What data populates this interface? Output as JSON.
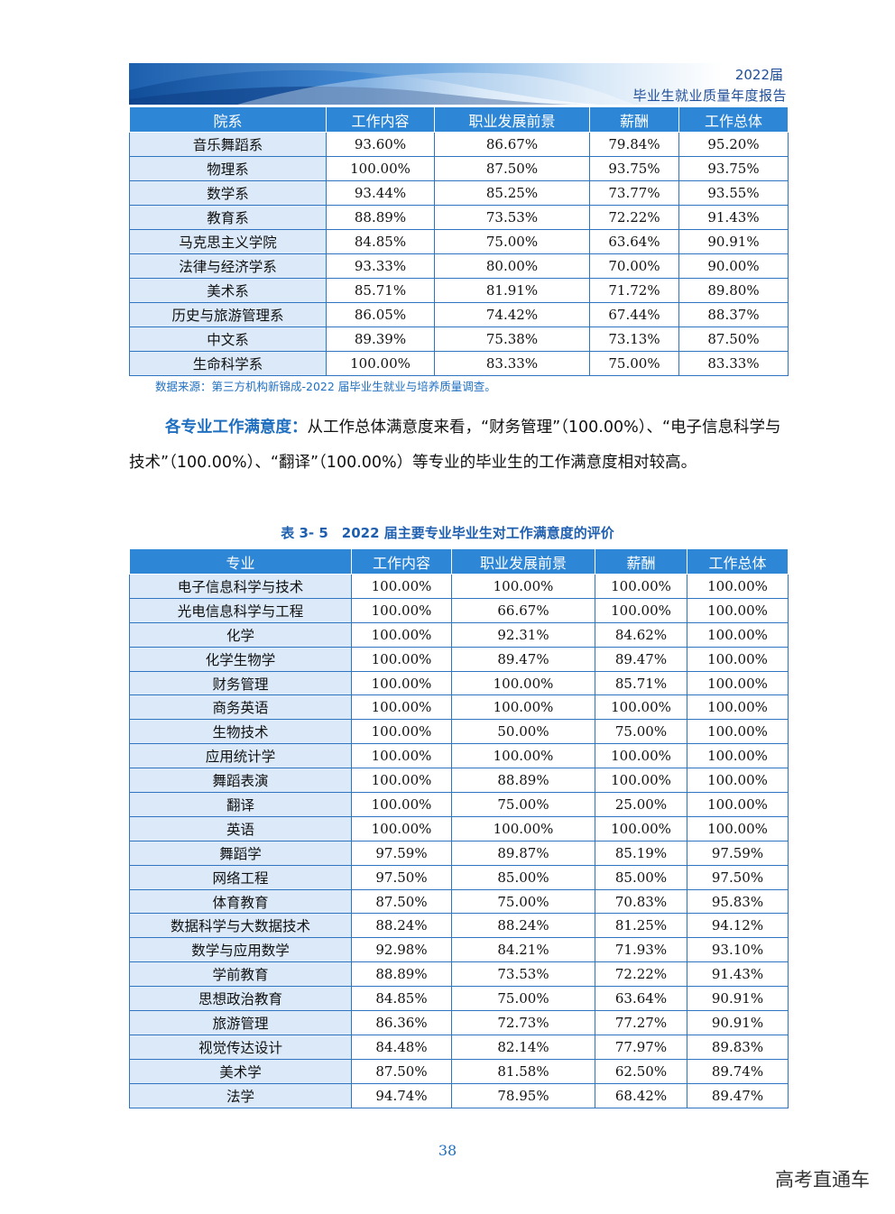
{
  "header": {
    "year": "2022届",
    "title": "毕业生就业质量年度报告"
  },
  "table1": {
    "columns": [
      "院系",
      "工作内容",
      "职业发展前景",
      "薪酬",
      "工作总体"
    ],
    "rows": [
      [
        "音乐舞蹈系",
        "93.60%",
        "86.67%",
        "79.84%",
        "95.20%"
      ],
      [
        "物理系",
        "100.00%",
        "87.50%",
        "93.75%",
        "93.75%"
      ],
      [
        "数学系",
        "93.44%",
        "85.25%",
        "73.77%",
        "93.55%"
      ],
      [
        "教育系",
        "88.89%",
        "73.53%",
        "72.22%",
        "91.43%"
      ],
      [
        "马克思主义学院",
        "84.85%",
        "75.00%",
        "63.64%",
        "90.91%"
      ],
      [
        "法律与经济学系",
        "93.33%",
        "80.00%",
        "70.00%",
        "90.00%"
      ],
      [
        "美术系",
        "85.71%",
        "81.91%",
        "71.72%",
        "89.80%"
      ],
      [
        "历史与旅游管理系",
        "86.05%",
        "74.42%",
        "67.44%",
        "88.37%"
      ],
      [
        "中文系",
        "89.39%",
        "75.38%",
        "73.13%",
        "87.50%"
      ],
      [
        "生命科学系",
        "100.00%",
        "83.33%",
        "75.00%",
        "83.33%"
      ]
    ]
  },
  "source_note": "数据来源：第三方机构新锦成-2022 届毕业生就业与培养质量调查。",
  "paragraph": {
    "highlight": "各专业工作满意度：",
    "text": "从工作总体满意度来看，“财务管理”（100.00%）、“电子信息科学与技术”（100.00%）、“翻译”（100.00%）等专业的毕业生的工作满意度相对较高。"
  },
  "caption": "表 3- 5　2022 届主要专业毕业生对工作满意度的评价",
  "table2": {
    "columns": [
      "专业",
      "工作内容",
      "职业发展前景",
      "薪酬",
      "工作总体"
    ],
    "rows": [
      [
        "电子信息科学与技术",
        "100.00%",
        "100.00%",
        "100.00%",
        "100.00%"
      ],
      [
        "光电信息科学与工程",
        "100.00%",
        "66.67%",
        "100.00%",
        "100.00%"
      ],
      [
        "化学",
        "100.00%",
        "92.31%",
        "84.62%",
        "100.00%"
      ],
      [
        "化学生物学",
        "100.00%",
        "89.47%",
        "89.47%",
        "100.00%"
      ],
      [
        "财务管理",
        "100.00%",
        "100.00%",
        "85.71%",
        "100.00%"
      ],
      [
        "商务英语",
        "100.00%",
        "100.00%",
        "100.00%",
        "100.00%"
      ],
      [
        "生物技术",
        "100.00%",
        "50.00%",
        "75.00%",
        "100.00%"
      ],
      [
        "应用统计学",
        "100.00%",
        "100.00%",
        "100.00%",
        "100.00%"
      ],
      [
        "舞蹈表演",
        "100.00%",
        "88.89%",
        "100.00%",
        "100.00%"
      ],
      [
        "翻译",
        "100.00%",
        "75.00%",
        "25.00%",
        "100.00%"
      ],
      [
        "英语",
        "100.00%",
        "100.00%",
        "100.00%",
        "100.00%"
      ],
      [
        "舞蹈学",
        "97.59%",
        "89.87%",
        "85.19%",
        "97.59%"
      ],
      [
        "网络工程",
        "97.50%",
        "85.00%",
        "85.00%",
        "97.50%"
      ],
      [
        "体育教育",
        "87.50%",
        "75.00%",
        "70.83%",
        "95.83%"
      ],
      [
        "数据科学与大数据技术",
        "88.24%",
        "88.24%",
        "81.25%",
        "94.12%"
      ],
      [
        "数学与应用数学",
        "92.98%",
        "84.21%",
        "71.93%",
        "93.10%"
      ],
      [
        "学前教育",
        "88.89%",
        "73.53%",
        "72.22%",
        "91.43%"
      ],
      [
        "思想政治教育",
        "84.85%",
        "75.00%",
        "63.64%",
        "90.91%"
      ],
      [
        "旅游管理",
        "86.36%",
        "72.73%",
        "77.27%",
        "90.91%"
      ],
      [
        "视觉传达设计",
        "84.48%",
        "82.14%",
        "77.97%",
        "89.83%"
      ],
      [
        "美术学",
        "87.50%",
        "81.58%",
        "62.50%",
        "89.74%"
      ],
      [
        "法学",
        "94.74%",
        "78.95%",
        "68.42%",
        "89.47%"
      ]
    ]
  },
  "page_number": "38",
  "watermark": "高考直通车"
}
